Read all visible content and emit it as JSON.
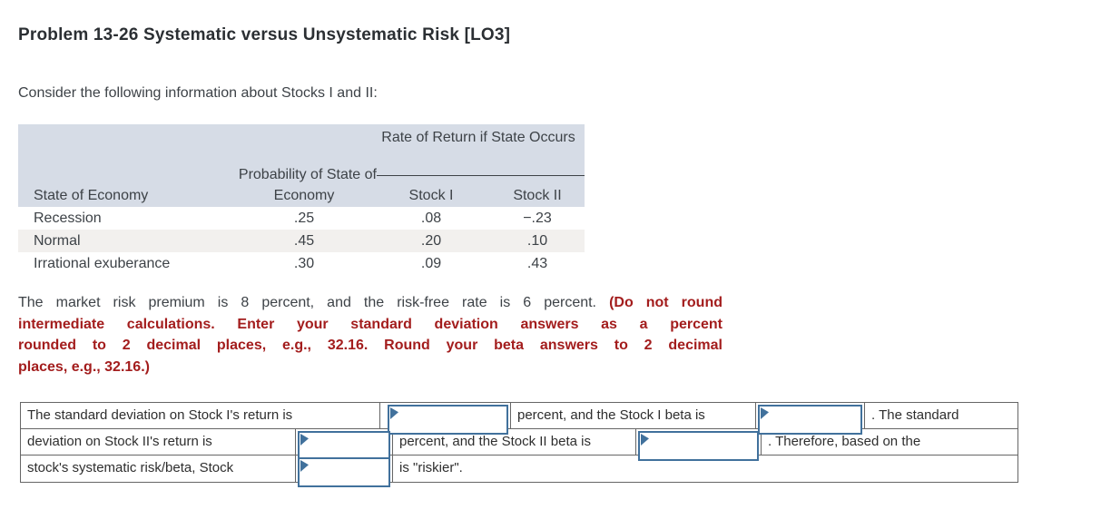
{
  "header": {
    "title": "Problem 13-26 Systematic versus Unsystematic Risk [LO3]"
  },
  "intro": "Consider the following information about Stocks I and II:",
  "info_table": {
    "spanner_header": "Rate of Return if State Occurs",
    "probability_header_line1": "Probability of State of",
    "probability_header_line2": "Economy",
    "state_header": "State of Economy",
    "stock1_header": "Stock I",
    "stock2_header": "Stock II",
    "rows": [
      {
        "state": "Recession",
        "probability": ".25",
        "stock1": ".08",
        "stock2": "−.23"
      },
      {
        "state": "Normal",
        "probability": ".45",
        "stock1": ".20",
        "stock2": ".10"
      },
      {
        "state": "Irrational exuberance",
        "probability": ".30",
        "stock1": ".09",
        "stock2": ".43"
      }
    ]
  },
  "instructions": {
    "line1_normal": "The market risk premium is 8 percent, and the risk-free rate is 6 percent. ",
    "line1_red": "(Do not round",
    "line2_red": "intermediate calculations. Enter your standard deviation answers as a percent",
    "line3_red": "rounded to 2 decimal places, e.g., 32.16. Round your beta answers to 2 decimal",
    "line4_red": "places, e.g., 32.16.)"
  },
  "answer_table": {
    "row1": {
      "text1": "The standard deviation on Stock I's return is",
      "input1": "",
      "text2": "percent, and the Stock I beta is",
      "input2": "",
      "text3": ". The standard"
    },
    "row2": {
      "text1": "deviation on Stock II's return is",
      "input1": "",
      "text2": "percent, and the Stock II beta is",
      "input2": "",
      "text3": ". Therefore, based on the"
    },
    "row3": {
      "text1": "stock's systematic risk/beta, Stock",
      "input1": "",
      "text2": "is \"riskier\"."
    }
  },
  "colors": {
    "table_header_bg": "#d6dce6",
    "shaded_row_bg": "#f2f0ee",
    "instruction_red": "#a31d1d",
    "answer_box_blue": "#41719c",
    "grid_border": "#666666"
  }
}
